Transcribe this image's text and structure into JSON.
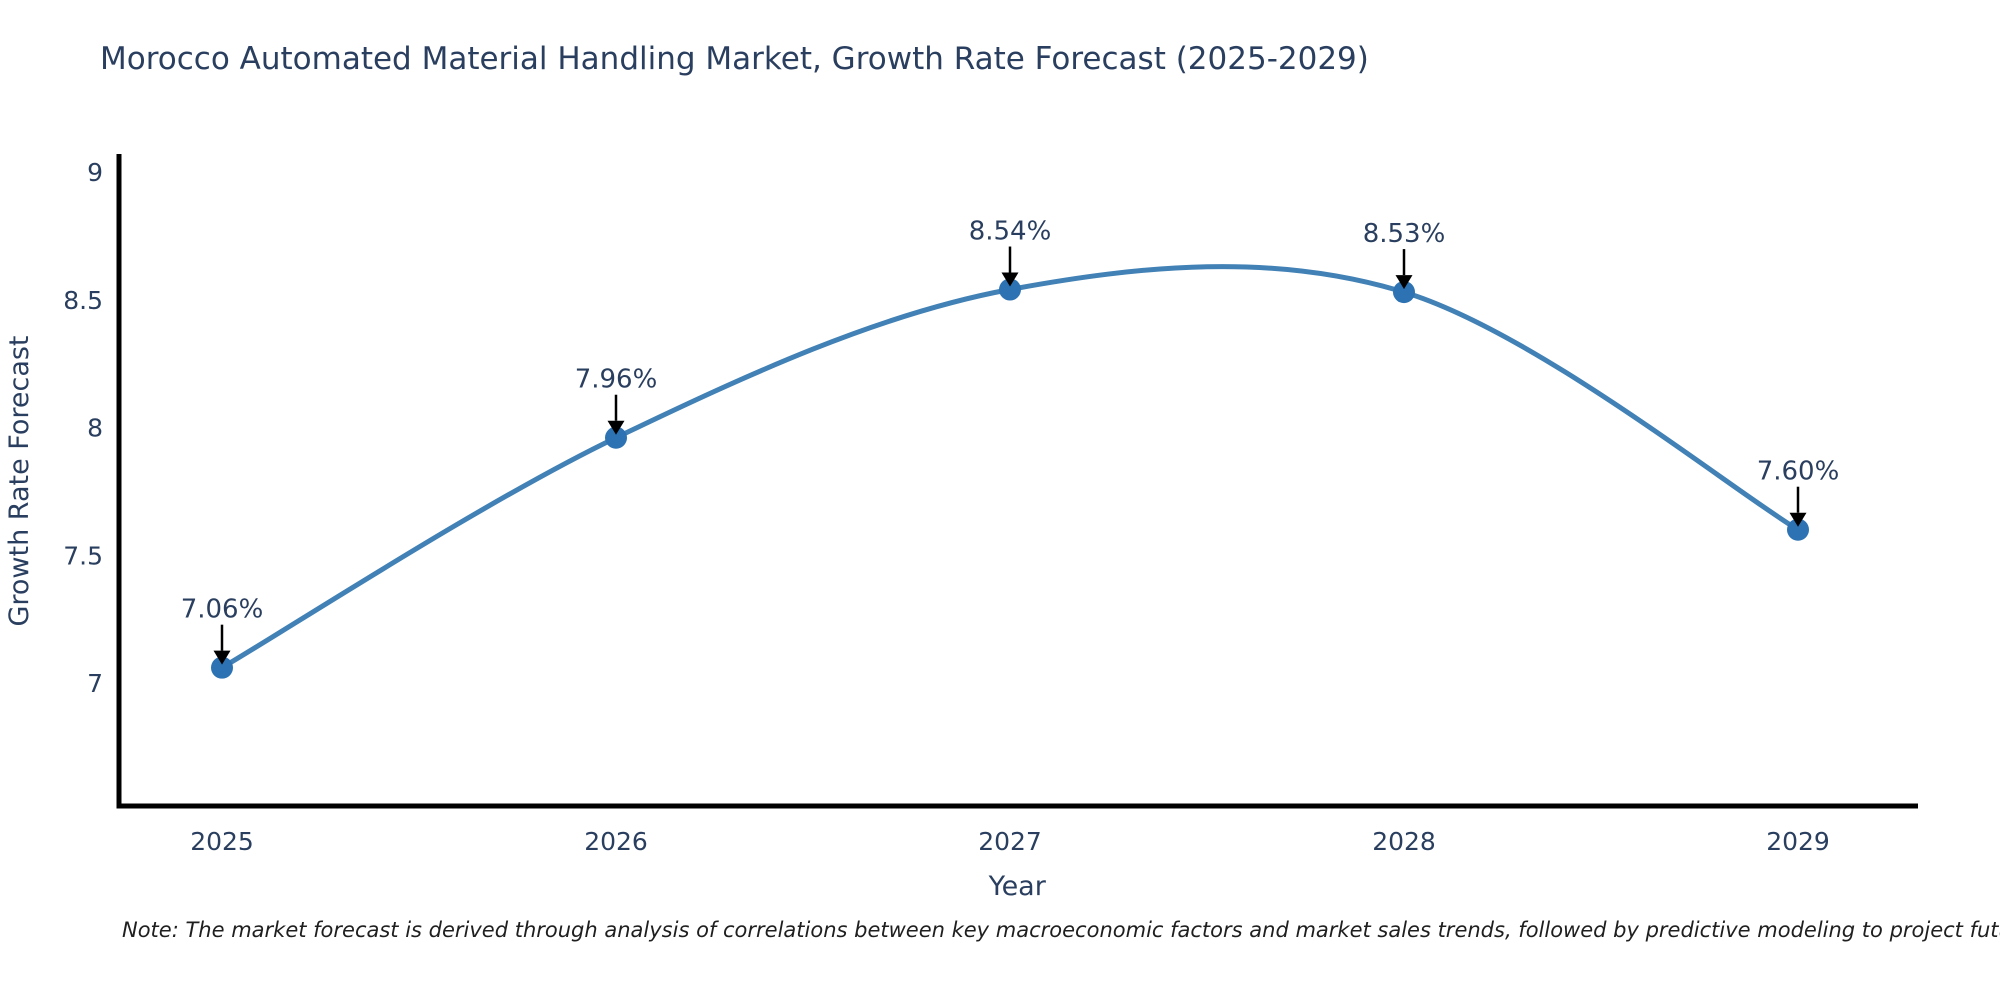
{
  "page": {
    "background": "#ffffff"
  },
  "chart_data": {
    "type": "line",
    "title": "Morocco Automated Material Handling Market, Growth Rate Forecast (2025-2029)",
    "xlabel": "Year",
    "ylabel": "Growth Rate Forecast",
    "categories": [
      "2025",
      "2026",
      "2027",
      "2028",
      "2029"
    ],
    "series": [
      {
        "name": "Growth Rate Forecast",
        "values": [
          7.06,
          7.96,
          8.54,
          8.53,
          7.6
        ]
      }
    ],
    "point_labels": [
      "7.06%",
      "7.96%",
      "8.54%",
      "8.53%",
      "7.60%"
    ],
    "yticks": [
      9,
      8.5,
      8,
      7.5,
      7
    ],
    "ylim": [
      6.5,
      9.05
    ],
    "line_shape": "spline",
    "grid": false,
    "legend": "none",
    "colors": {
      "line": "#4181b5",
      "marker": "#2d72b2",
      "axis": "#000000",
      "text": "#2a3f5f",
      "arrow": "#000000",
      "note": "#1f1f1f"
    },
    "note": "Note: The market forecast is derived through analysis of correlations between key macroeconomic factors and market sales trends, followed by predictive modeling to project future sales"
  }
}
